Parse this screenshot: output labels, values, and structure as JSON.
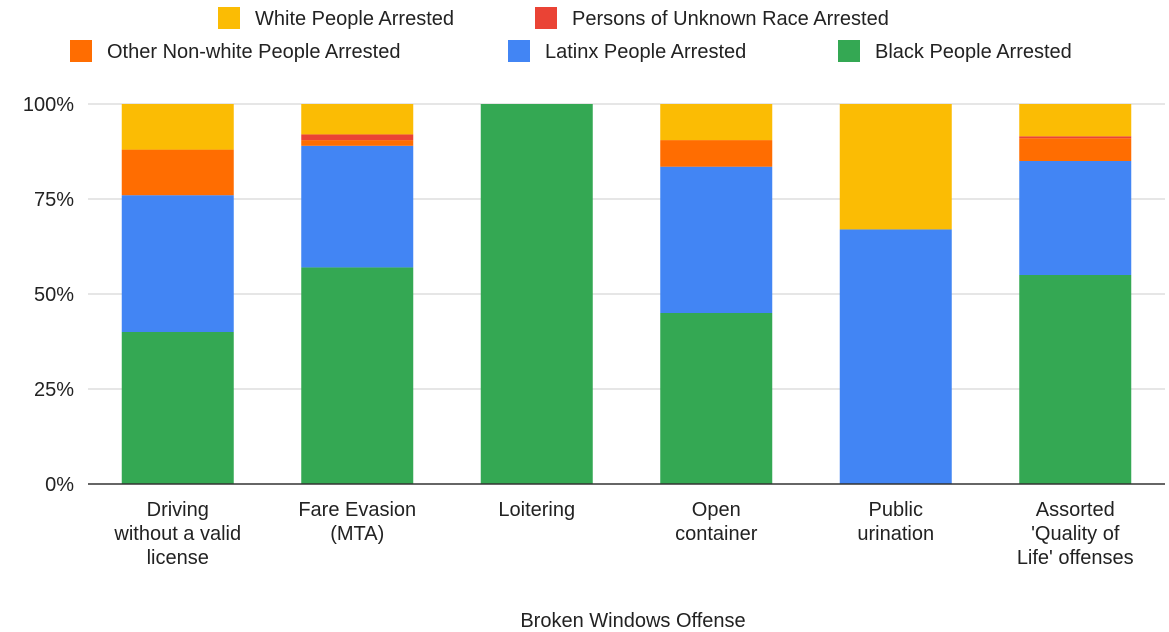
{
  "chart_data": {
    "type": "bar",
    "stacked": "percent",
    "xlabel": "Broken Windows Offense",
    "ylabel": "",
    "ylim": [
      0,
      100
    ],
    "yticks": [
      "0%",
      "25%",
      "50%",
      "75%",
      "100%"
    ],
    "legend_position": "top",
    "grid": true,
    "categories": [
      [
        "Driving",
        "without a valid",
        "license"
      ],
      [
        "Fare Evasion",
        "(MTA)"
      ],
      [
        "Loitering"
      ],
      [
        "Open",
        "container"
      ],
      [
        "Public",
        "urination"
      ],
      [
        "Assorted",
        "'Quality of",
        "Life' offenses"
      ]
    ],
    "series": [
      {
        "name": "Black People Arrested",
        "color": "#34a853",
        "values": [
          40,
          57,
          100,
          45,
          0,
          55
        ]
      },
      {
        "name": "Latinx People Arrested",
        "color": "#4285f4",
        "values": [
          36,
          32,
          0,
          38.5,
          67,
          30
        ]
      },
      {
        "name": "Other Non-white People Arrested",
        "color": "#ff6d01",
        "values": [
          12,
          1.5,
          0,
          7,
          0,
          6
        ]
      },
      {
        "name": "Persons of Unknown Race Arrested",
        "color": "#ea4335",
        "values": [
          0,
          1.5,
          0,
          0,
          0,
          0.5
        ]
      },
      {
        "name": "White People Arrested",
        "color": "#fbbc04",
        "values": [
          12,
          8,
          0,
          9.5,
          33,
          8.5
        ]
      }
    ],
    "legend_order": [
      "White People Arrested",
      "Persons of Unknown Race Arrested",
      "Other Non-white People Arrested",
      "Latinx People Arrested",
      "Black People Arrested"
    ]
  }
}
